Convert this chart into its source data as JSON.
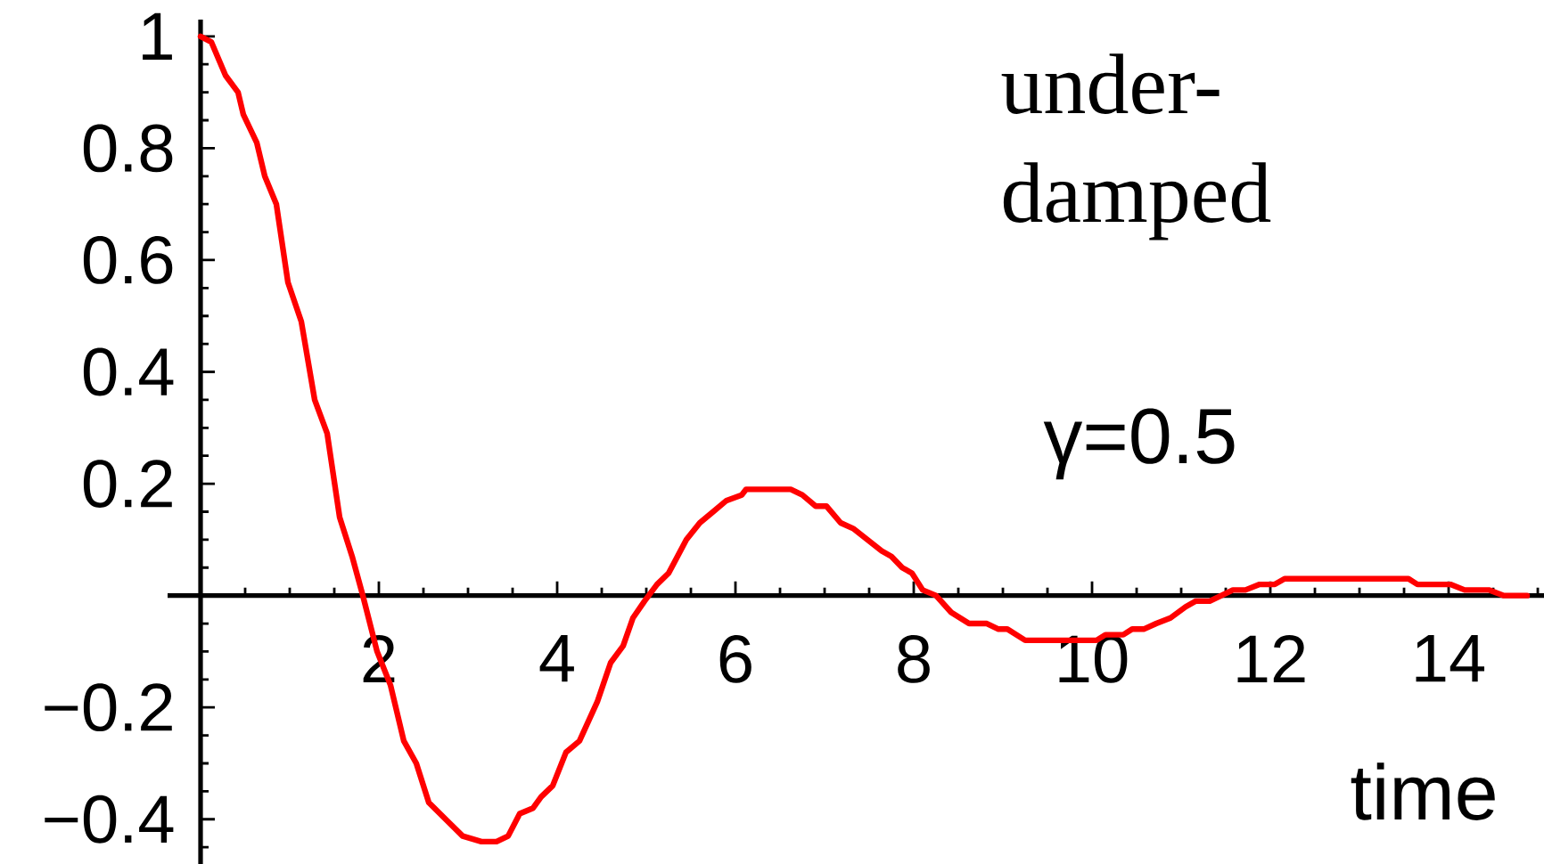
{
  "chart_data": {
    "type": "line",
    "xlabel": "time",
    "annotations": [
      "under-damped",
      "γ=0.5"
    ],
    "x": [
      0,
      0.12,
      0.28,
      0.42,
      0.48,
      0.63,
      0.72,
      0.85,
      0.98,
      1.13,
      1.28,
      1.42,
      1.56,
      1.7,
      1.82,
      1.98,
      2.13,
      2.28,
      2.42,
      2.56,
      2.75,
      2.94,
      3.15,
      3.32,
      3.45,
      3.58,
      3.73,
      3.82,
      3.95,
      4.1,
      4.25,
      4.45,
      4.6,
      4.74,
      4.85,
      4.98,
      5.12,
      5.25,
      5.45,
      5.6,
      5.75,
      5.9,
      6.07,
      6.12,
      6.62,
      6.75,
      6.9,
      7.02,
      7.18,
      7.32,
      7.64,
      7.75,
      7.87,
      7.98,
      8.1,
      8.25,
      8.42,
      8.62,
      8.82,
      8.95,
      9.05,
      9.25,
      10.05,
      10.15,
      10.35,
      10.45,
      10.58,
      10.72,
      10.88,
      11.05,
      11.16,
      11.32,
      11.45,
      11.58,
      11.72,
      11.88,
      12.05,
      12.16,
      13.55,
      13.65,
      14.02,
      14.18,
      14.45,
      14.62,
      14.88
    ],
    "values": [
      1.0,
      0.99,
      0.93,
      0.9,
      0.86,
      0.81,
      0.75,
      0.7,
      0.56,
      0.49,
      0.35,
      0.29,
      0.14,
      0.07,
      0.0,
      -0.1,
      -0.16,
      -0.26,
      -0.3,
      -0.37,
      -0.4,
      -0.43,
      -0.44,
      -0.44,
      -0.43,
      -0.39,
      -0.38,
      -0.36,
      -0.34,
      -0.28,
      -0.26,
      -0.19,
      -0.12,
      -0.09,
      -0.04,
      -0.01,
      0.02,
      0.04,
      0.1,
      0.13,
      0.15,
      0.17,
      0.18,
      0.19,
      0.19,
      0.18,
      0.16,
      0.16,
      0.13,
      0.12,
      0.08,
      0.07,
      0.05,
      0.04,
      0.01,
      0.0,
      -0.03,
      -0.05,
      -0.05,
      -0.06,
      -0.06,
      -0.08,
      -0.08,
      -0.07,
      -0.07,
      -0.06,
      -0.06,
      -0.05,
      -0.04,
      -0.02,
      -0.01,
      -0.01,
      0.0,
      0.01,
      0.01,
      0.02,
      0.02,
      0.03,
      0.03,
      0.02,
      0.02,
      0.01,
      0.01,
      0.0,
      0.0
    ],
    "color": "#ff0000",
    "line_style": "solid",
    "xlim": [
      -0.37,
      15.07
    ],
    "ylim": [
      -0.48,
      1.03
    ],
    "xticks": [
      2,
      4,
      6,
      8,
      10,
      12,
      14
    ],
    "yticks": [
      {
        "value": -0.4,
        "label": "−0.4"
      },
      {
        "value": -0.2,
        "label": "−0.2"
      },
      0.2,
      0.4,
      0.6,
      0.8,
      1
    ]
  }
}
